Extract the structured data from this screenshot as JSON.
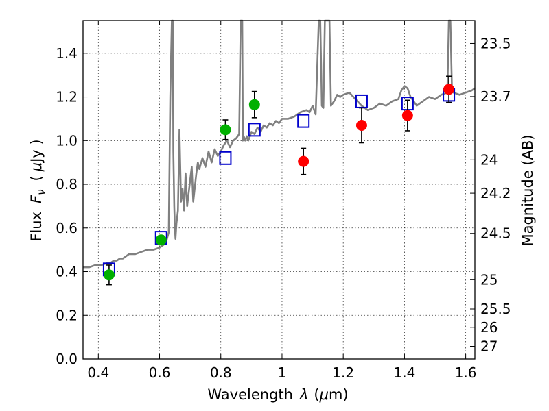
{
  "chart_data": {
    "type": "scatter",
    "xlabel": "Wavelength",
    "xlabel_symbol": "λ",
    "xlabel_unit_open": "(",
    "xlabel_unit_symbol": "μ",
    "xlabel_unit_rest": "m)",
    "ylabel": "Flux",
    "ylabel_symbol": "F",
    "ylabel_subscript": "ν",
    "ylabel_unit_open": "(",
    "ylabel_unit_symbol": "μ",
    "ylabel_unit_rest": "Jy )",
    "y2label": "Magnitude (AB)",
    "xlim": [
      0.35,
      1.63
    ],
    "ylim": [
      0.0,
      1.55
    ],
    "grid": true,
    "x_ticks": [
      0.4,
      0.6,
      0.8,
      1.0,
      1.2,
      1.4,
      1.6
    ],
    "x_tick_labels": [
      "0.4",
      "0.6",
      "0.8",
      "1",
      "1.2",
      "1.4",
      "1.6"
    ],
    "y_ticks": [
      0.0,
      0.2,
      0.4,
      0.6,
      0.8,
      1.0,
      1.2,
      1.4
    ],
    "y_tick_labels": [
      "0.0",
      "0.2",
      "0.4",
      "0.6",
      "0.8",
      "1.0",
      "1.2",
      "1.4"
    ],
    "mag_ticks": [
      {
        "label": "23.5",
        "flux": 1.445
      },
      {
        "label": "23.7",
        "flux": 1.202
      },
      {
        "label": "24",
        "flux": 0.912
      },
      {
        "label": "24.2",
        "flux": 0.759
      },
      {
        "label": "24.5",
        "flux": 0.575
      },
      {
        "label": "25",
        "flux": 0.363
      },
      {
        "label": "25.5",
        "flux": 0.229
      },
      {
        "label": "26",
        "flux": 0.145
      },
      {
        "label": "27",
        "flux": 0.058
      }
    ],
    "series": [
      {
        "name": "model spectrum",
        "color": "#808080",
        "x": [
          0.35,
          0.37,
          0.39,
          0.41,
          0.43,
          0.44,
          0.45,
          0.46,
          0.47,
          0.48,
          0.49,
          0.5,
          0.52,
          0.54,
          0.56,
          0.58,
          0.6,
          0.61,
          0.62,
          0.63,
          0.635,
          0.64,
          0.643,
          0.645,
          0.648,
          0.65,
          0.652,
          0.655,
          0.66,
          0.665,
          0.67,
          0.675,
          0.68,
          0.685,
          0.69,
          0.7,
          0.705,
          0.71,
          0.72,
          0.725,
          0.73,
          0.74,
          0.75,
          0.76,
          0.77,
          0.78,
          0.79,
          0.8,
          0.81,
          0.82,
          0.83,
          0.84,
          0.85,
          0.86,
          0.865,
          0.87,
          0.872,
          0.875,
          0.88,
          0.885,
          0.89,
          0.9,
          0.91,
          0.92,
          0.93,
          0.94,
          0.95,
          0.96,
          0.97,
          0.98,
          0.99,
          1.0,
          1.02,
          1.04,
          1.06,
          1.08,
          1.09,
          1.1,
          1.11,
          1.12,
          1.125,
          1.13,
          1.135,
          1.14,
          1.145,
          1.15,
          1.155,
          1.16,
          1.17,
          1.18,
          1.19,
          1.2,
          1.22,
          1.24,
          1.26,
          1.28,
          1.3,
          1.32,
          1.34,
          1.36,
          1.38,
          1.39,
          1.4,
          1.41,
          1.42,
          1.44,
          1.46,
          1.48,
          1.5,
          1.52,
          1.54,
          1.545,
          1.55,
          1.555,
          1.56,
          1.58,
          1.6,
          1.62,
          1.63
        ],
        "y": [
          0.42,
          0.42,
          0.43,
          0.43,
          0.44,
          0.44,
          0.45,
          0.45,
          0.46,
          0.46,
          0.47,
          0.48,
          0.48,
          0.49,
          0.5,
          0.5,
          0.51,
          0.52,
          0.53,
          0.58,
          1.2,
          1.55,
          1.55,
          0.95,
          0.7,
          0.6,
          0.55,
          0.62,
          0.68,
          1.05,
          0.72,
          0.78,
          0.68,
          0.85,
          0.7,
          0.82,
          0.88,
          0.72,
          0.85,
          0.9,
          0.87,
          0.92,
          0.88,
          0.95,
          0.9,
          0.96,
          0.93,
          0.95,
          0.98,
          1.0,
          0.97,
          1.0,
          1.01,
          1.03,
          1.55,
          1.55,
          1.0,
          1.02,
          1.0,
          1.02,
          1.0,
          1.04,
          1.03,
          1.06,
          1.04,
          1.07,
          1.06,
          1.08,
          1.07,
          1.09,
          1.08,
          1.1,
          1.1,
          1.11,
          1.13,
          1.14,
          1.13,
          1.16,
          1.12,
          1.55,
          1.55,
          1.16,
          1.15,
          1.55,
          1.55,
          1.55,
          1.55,
          1.16,
          1.18,
          1.21,
          1.2,
          1.21,
          1.22,
          1.19,
          1.16,
          1.14,
          1.15,
          1.17,
          1.16,
          1.18,
          1.19,
          1.23,
          1.25,
          1.24,
          1.2,
          1.16,
          1.18,
          1.2,
          1.19,
          1.21,
          1.22,
          1.55,
          1.55,
          1.25,
          1.22,
          1.21,
          1.22,
          1.23,
          1.24
        ]
      },
      {
        "name": "model photometry",
        "marker": "open-square",
        "color": "#0000cc",
        "x": [
          0.435,
          0.605,
          0.815,
          0.91,
          1.07,
          1.26,
          1.41,
          1.545
        ],
        "y": [
          0.41,
          0.555,
          0.92,
          1.05,
          1.09,
          1.18,
          1.17,
          1.21
        ]
      },
      {
        "name": "observed (green)",
        "marker": "filled-circle",
        "color": "#00b000",
        "x": [
          0.435,
          0.605,
          0.815,
          0.91
        ],
        "y": [
          0.385,
          0.545,
          1.05,
          1.165
        ],
        "yerr": [
          0.045,
          0.02,
          0.045,
          0.06
        ]
      },
      {
        "name": "observed (red)",
        "marker": "filled-circle",
        "color": "#ff0000",
        "x": [
          1.07,
          1.26,
          1.41,
          1.545
        ],
        "y": [
          0.905,
          1.07,
          1.115,
          1.235
        ],
        "yerr": [
          0.06,
          0.08,
          0.07,
          0.06
        ]
      }
    ]
  }
}
